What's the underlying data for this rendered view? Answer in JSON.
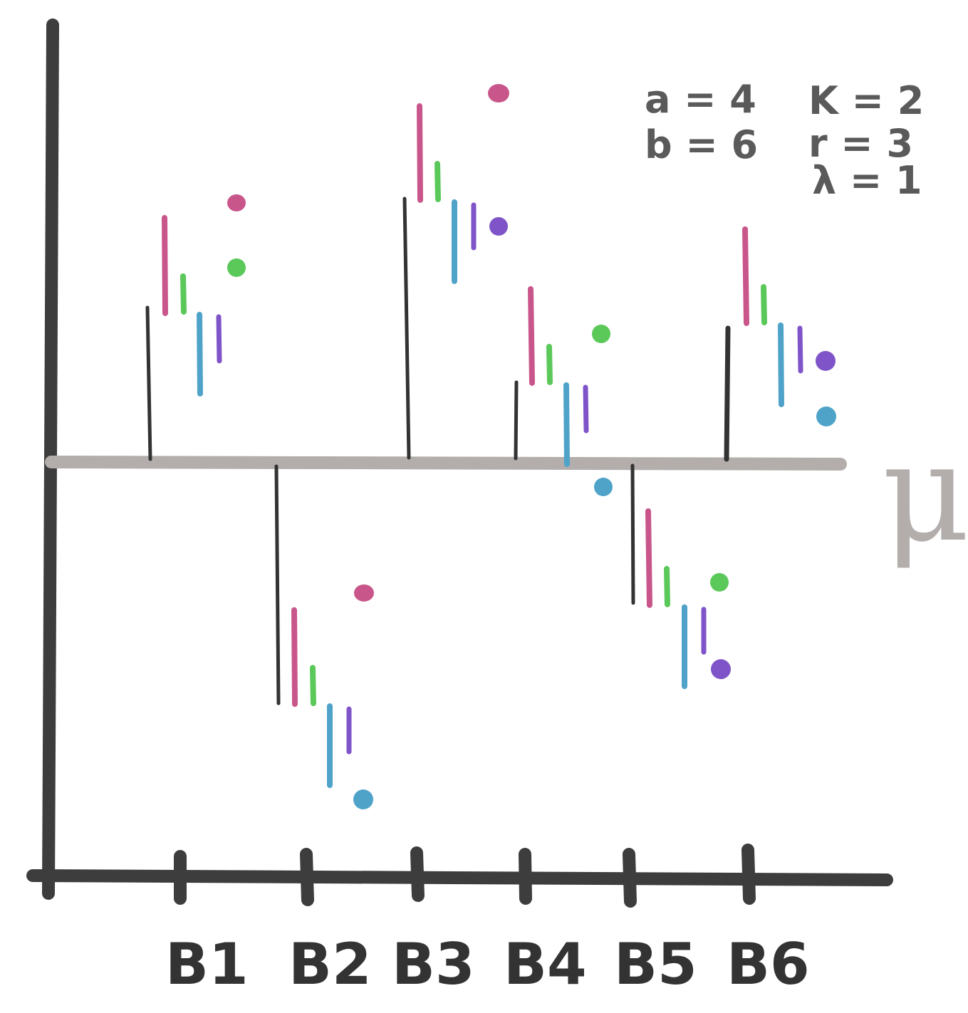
{
  "mean_label": "μ",
  "block_labels": [
    "B1",
    "B2",
    "B3",
    "B4",
    "B5",
    "B6"
  ],
  "parameters": {
    "a": "a = 4",
    "b": "b = 6",
    "k": "K = 2",
    "r": "r = 3",
    "lambda": "λ = 1"
  },
  "colors": {
    "block_effect": "#333333",
    "treatment_1": "#c9568a",
    "treatment_2": "#5bc85a",
    "treatment_3": "#4fa3c9",
    "treatment_4": "#7f54c9",
    "mean_line": "#b3aeac",
    "axis": "#3d3d3d"
  },
  "icons": {
    "bar": "vertical-line-mark",
    "observation": "filled-dot"
  }
}
